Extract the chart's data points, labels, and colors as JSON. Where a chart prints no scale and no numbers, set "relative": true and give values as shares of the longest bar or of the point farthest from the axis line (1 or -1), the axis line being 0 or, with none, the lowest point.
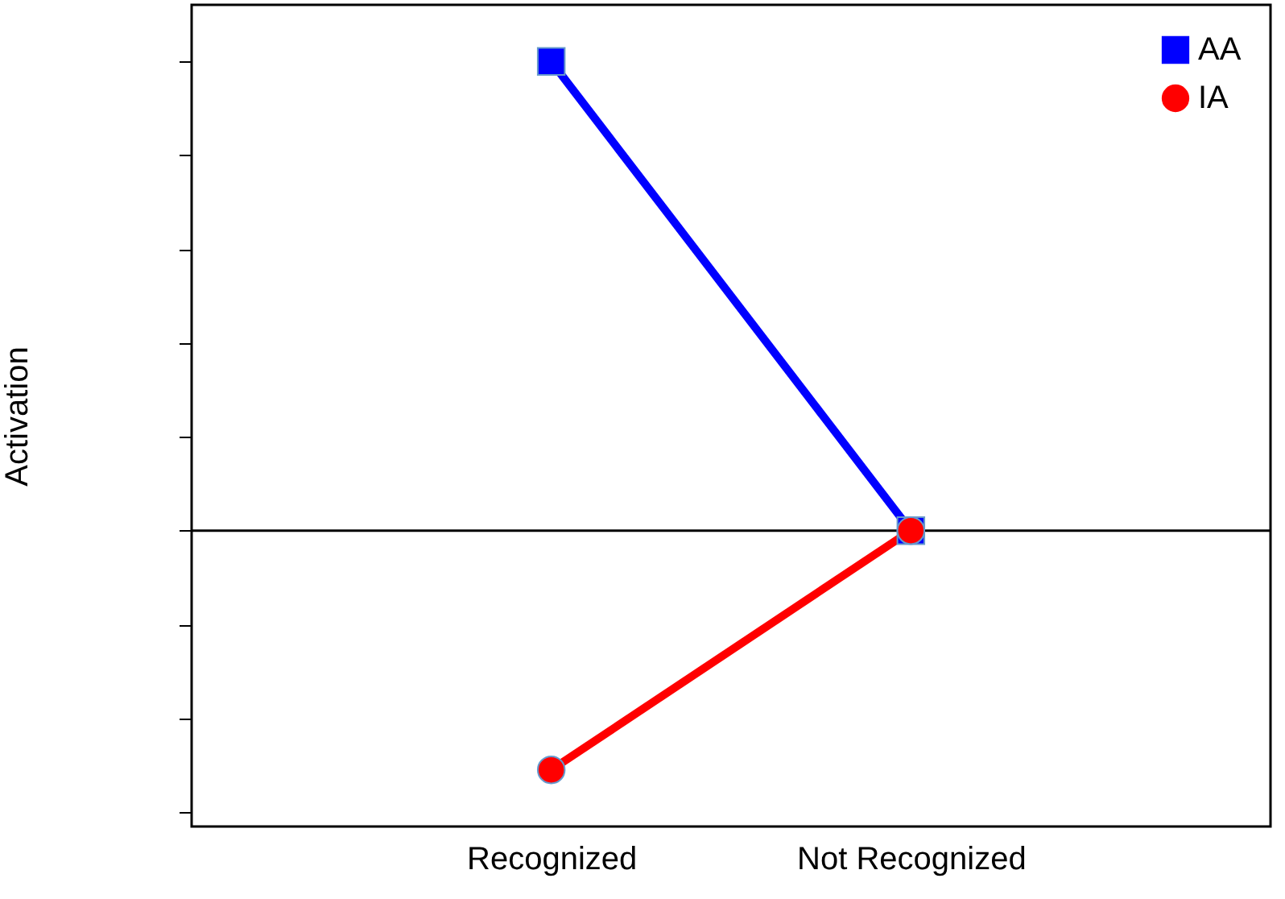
{
  "chart_data": {
    "type": "line",
    "relative": true,
    "ylabel": "Activation",
    "categories": [
      "Recognized",
      "Not Recognized"
    ],
    "series": [
      {
        "name": "AA",
        "color": "#0000ff",
        "marker": "square",
        "values": [
          1,
          0
        ]
      },
      {
        "name": "IA",
        "color": "#ff0000",
        "marker": "circle",
        "values": [
          -0.51,
          0
        ]
      }
    ],
    "legend": "top right",
    "grid": false
  }
}
